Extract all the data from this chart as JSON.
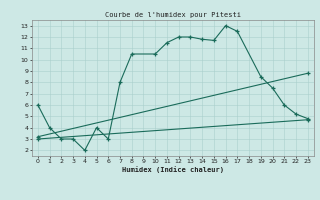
{
  "title": "Courbe de l'humidex pour Pitesti",
  "xlabel": "Humidex (Indice chaleur)",
  "xlim": [
    -0.5,
    23.5
  ],
  "ylim": [
    1.5,
    13.5
  ],
  "xticks": [
    0,
    1,
    2,
    3,
    4,
    5,
    6,
    7,
    8,
    9,
    10,
    11,
    12,
    13,
    14,
    15,
    16,
    17,
    18,
    19,
    20,
    21,
    22,
    23
  ],
  "yticks": [
    2,
    3,
    4,
    5,
    6,
    7,
    8,
    9,
    10,
    11,
    12,
    13
  ],
  "line_color": "#1a6b5a",
  "bg_color": "#cde8e5",
  "grid_color": "#aacfcc",
  "series": [
    {
      "x": [
        0,
        1,
        2,
        3,
        4,
        5,
        6,
        7,
        8,
        10,
        11,
        12,
        13,
        14,
        15,
        16,
        17,
        19,
        20,
        21,
        22,
        23
      ],
      "y": [
        6,
        4,
        3,
        3,
        2,
        4,
        3,
        8,
        10.5,
        10.5,
        11.5,
        12,
        12,
        11.8,
        11.7,
        13,
        12.5,
        8.5,
        7.5,
        6,
        5.2,
        4.8
      ]
    },
    {
      "x": [
        0,
        23
      ],
      "y": [
        3.2,
        8.8
      ]
    },
    {
      "x": [
        0,
        23
      ],
      "y": [
        3.0,
        4.7
      ]
    }
  ]
}
